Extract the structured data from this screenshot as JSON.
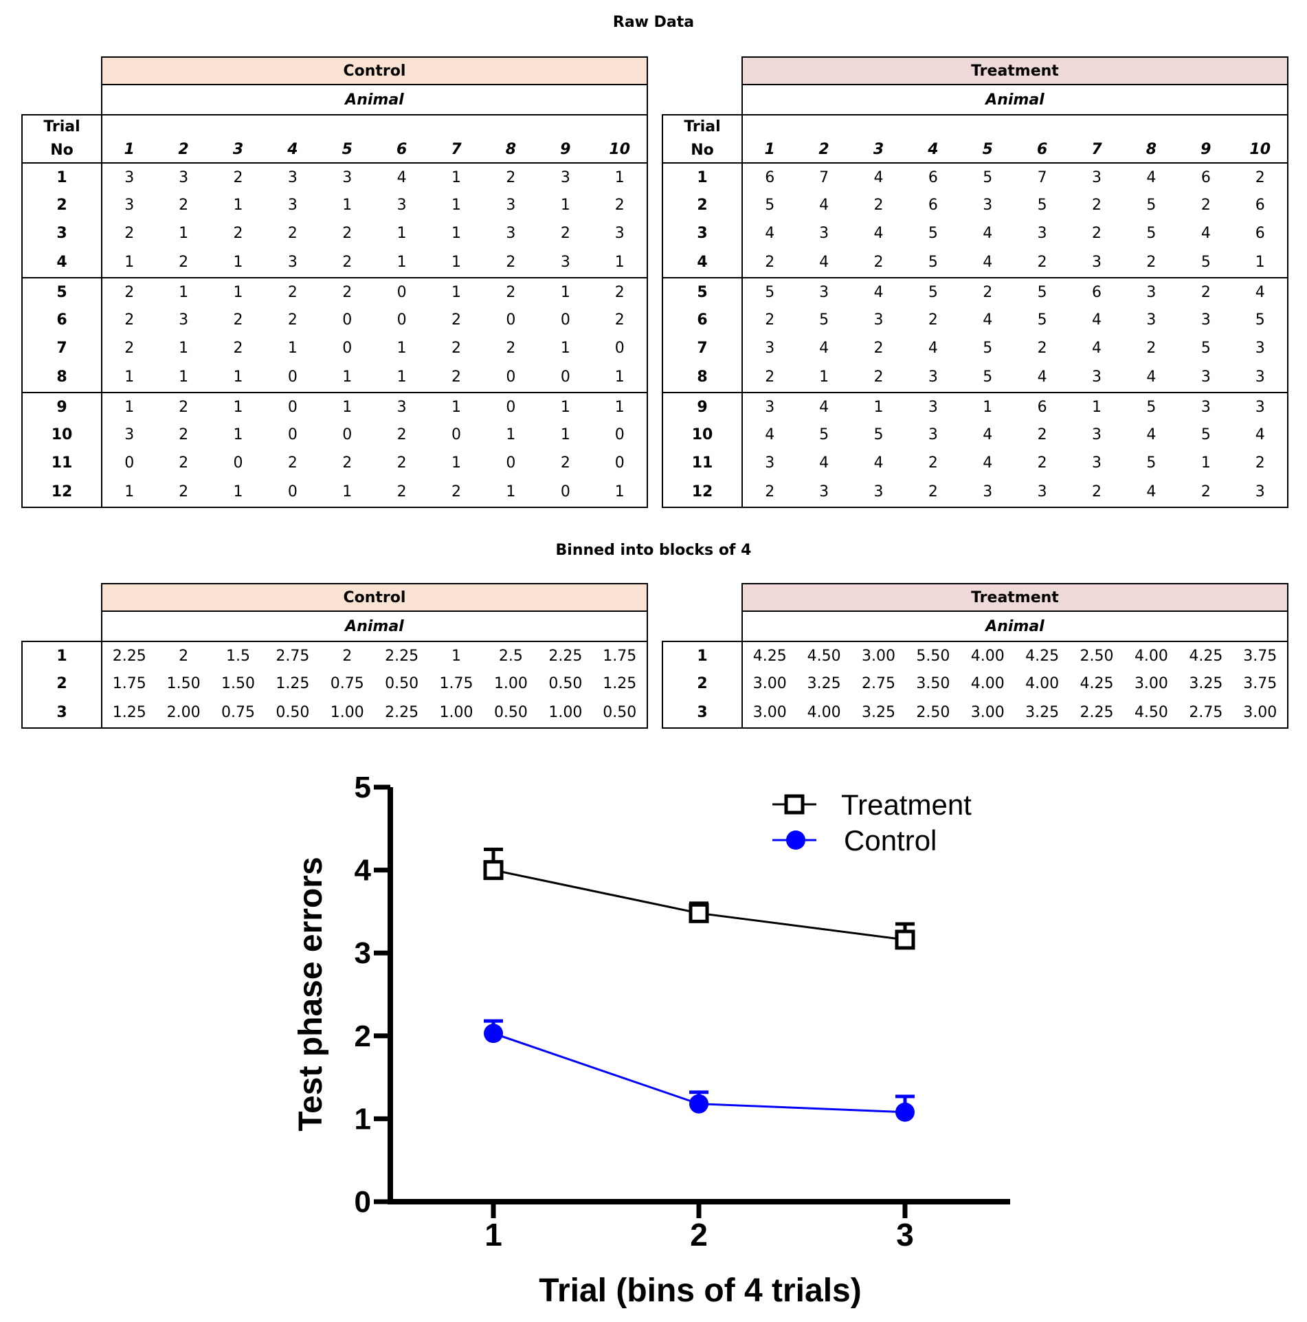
{
  "raw_title": "Raw Data",
  "binned_title": "Binned into blocks of 4",
  "group_control": "Control",
  "group_treatment": "Treatment",
  "animal_label": "Animal",
  "trial_label_line1": "Trial",
  "trial_label_line2": "No",
  "animal_numbers": [
    "1",
    "2",
    "3",
    "4",
    "5",
    "6",
    "7",
    "8",
    "9",
    "10"
  ],
  "raw_control": [
    [
      "1",
      [
        "3",
        "3",
        "2",
        "3",
        "3",
        "4",
        "1",
        "2",
        "3",
        "1"
      ]
    ],
    [
      "2",
      [
        "3",
        "2",
        "1",
        "3",
        "1",
        "3",
        "1",
        "3",
        "1",
        "2"
      ]
    ],
    [
      "3",
      [
        "2",
        "1",
        "2",
        "2",
        "2",
        "1",
        "1",
        "3",
        "2",
        "3"
      ]
    ],
    [
      "4",
      [
        "1",
        "2",
        "1",
        "3",
        "2",
        "1",
        "1",
        "2",
        "3",
        "1"
      ]
    ],
    [
      "5",
      [
        "2",
        "1",
        "1",
        "2",
        "2",
        "0",
        "1",
        "2",
        "1",
        "2"
      ]
    ],
    [
      "6",
      [
        "2",
        "3",
        "2",
        "2",
        "0",
        "0",
        "2",
        "0",
        "0",
        "2"
      ]
    ],
    [
      "7",
      [
        "2",
        "1",
        "2",
        "1",
        "0",
        "1",
        "2",
        "2",
        "1",
        "0"
      ]
    ],
    [
      "8",
      [
        "1",
        "1",
        "1",
        "0",
        "1",
        "1",
        "2",
        "0",
        "0",
        "1"
      ]
    ],
    [
      "9",
      [
        "1",
        "2",
        "1",
        "0",
        "1",
        "3",
        "1",
        "0",
        "1",
        "1"
      ]
    ],
    [
      "10",
      [
        "3",
        "2",
        "1",
        "0",
        "0",
        "2",
        "0",
        "1",
        "1",
        "0"
      ]
    ],
    [
      "11",
      [
        "0",
        "2",
        "0",
        "2",
        "2",
        "2",
        "1",
        "0",
        "2",
        "0"
      ]
    ],
    [
      "12",
      [
        "1",
        "2",
        "1",
        "0",
        "1",
        "2",
        "2",
        "1",
        "0",
        "1"
      ]
    ]
  ],
  "raw_treatment": [
    [
      "1",
      [
        "6",
        "7",
        "4",
        "6",
        "5",
        "7",
        "3",
        "4",
        "6",
        "2"
      ]
    ],
    [
      "2",
      [
        "5",
        "4",
        "2",
        "6",
        "3",
        "5",
        "2",
        "5",
        "2",
        "6"
      ]
    ],
    [
      "3",
      [
        "4",
        "3",
        "4",
        "5",
        "4",
        "3",
        "2",
        "5",
        "4",
        "6"
      ]
    ],
    [
      "4",
      [
        "2",
        "4",
        "2",
        "5",
        "4",
        "2",
        "3",
        "2",
        "5",
        "1"
      ]
    ],
    [
      "5",
      [
        "5",
        "3",
        "4",
        "5",
        "2",
        "5",
        "6",
        "3",
        "2",
        "4"
      ]
    ],
    [
      "6",
      [
        "2",
        "5",
        "3",
        "2",
        "4",
        "5",
        "4",
        "3",
        "3",
        "5"
      ]
    ],
    [
      "7",
      [
        "3",
        "4",
        "2",
        "4",
        "5",
        "2",
        "4",
        "2",
        "5",
        "3"
      ]
    ],
    [
      "8",
      [
        "2",
        "1",
        "2",
        "3",
        "5",
        "4",
        "3",
        "4",
        "3",
        "3"
      ]
    ],
    [
      "9",
      [
        "3",
        "4",
        "1",
        "3",
        "1",
        "6",
        "1",
        "5",
        "3",
        "3"
      ]
    ],
    [
      "10",
      [
        "4",
        "5",
        "5",
        "3",
        "4",
        "2",
        "3",
        "4",
        "5",
        "4"
      ]
    ],
    [
      "11",
      [
        "3",
        "4",
        "4",
        "2",
        "4",
        "2",
        "3",
        "5",
        "1",
        "2"
      ]
    ],
    [
      "12",
      [
        "2",
        "3",
        "3",
        "2",
        "3",
        "3",
        "2",
        "4",
        "2",
        "3"
      ]
    ]
  ],
  "binned_control": [
    [
      "1",
      [
        "2.25",
        "2",
        "1.5",
        "2.75",
        "2",
        "2.25",
        "1",
        "2.5",
        "2.25",
        "1.75"
      ]
    ],
    [
      "2",
      [
        "1.75",
        "1.50",
        "1.50",
        "1.25",
        "0.75",
        "0.50",
        "1.75",
        "1.00",
        "0.50",
        "1.25"
      ]
    ],
    [
      "3",
      [
        "1.25",
        "2.00",
        "0.75",
        "0.50",
        "1.00",
        "2.25",
        "1.00",
        "0.50",
        "1.00",
        "0.50"
      ]
    ]
  ],
  "binned_treatment": [
    [
      "1",
      [
        "4.25",
        "4.50",
        "3.00",
        "5.50",
        "4.00",
        "4.25",
        "2.50",
        "4.00",
        "4.25",
        "3.75"
      ]
    ],
    [
      "2",
      [
        "3.00",
        "3.25",
        "2.75",
        "3.50",
        "4.00",
        "4.00",
        "4.25",
        "3.00",
        "3.25",
        "3.75"
      ]
    ],
    [
      "3",
      [
        "3.00",
        "4.00",
        "3.25",
        "2.50",
        "3.00",
        "3.25",
        "2.25",
        "4.50",
        "2.75",
        "3.00"
      ]
    ]
  ],
  "chart_data": {
    "type": "line",
    "xlabel": "Trial (bins of 4 trials)",
    "ylabel": "Test phase errors",
    "categories": [
      "1",
      "2",
      "3"
    ],
    "x": [
      1,
      2,
      3
    ],
    "xlim": [
      0.5,
      3.5
    ],
    "ylim": [
      0,
      5
    ],
    "yticks": [
      "0",
      "1",
      "2",
      "3",
      "4",
      "5"
    ],
    "grid": false,
    "legend_position": "top-right",
    "series": [
      {
        "name": "Treatment",
        "values": [
          4.0,
          3.48,
          3.16
        ],
        "error": [
          0.25,
          0.12,
          0.19
        ],
        "marker": "open-square",
        "color": "#000000"
      },
      {
        "name": "Control",
        "values": [
          2.03,
          1.18,
          1.08
        ],
        "error": [
          0.15,
          0.14,
          0.19
        ],
        "marker": "filled-circle",
        "color": "#0000ff"
      }
    ]
  }
}
